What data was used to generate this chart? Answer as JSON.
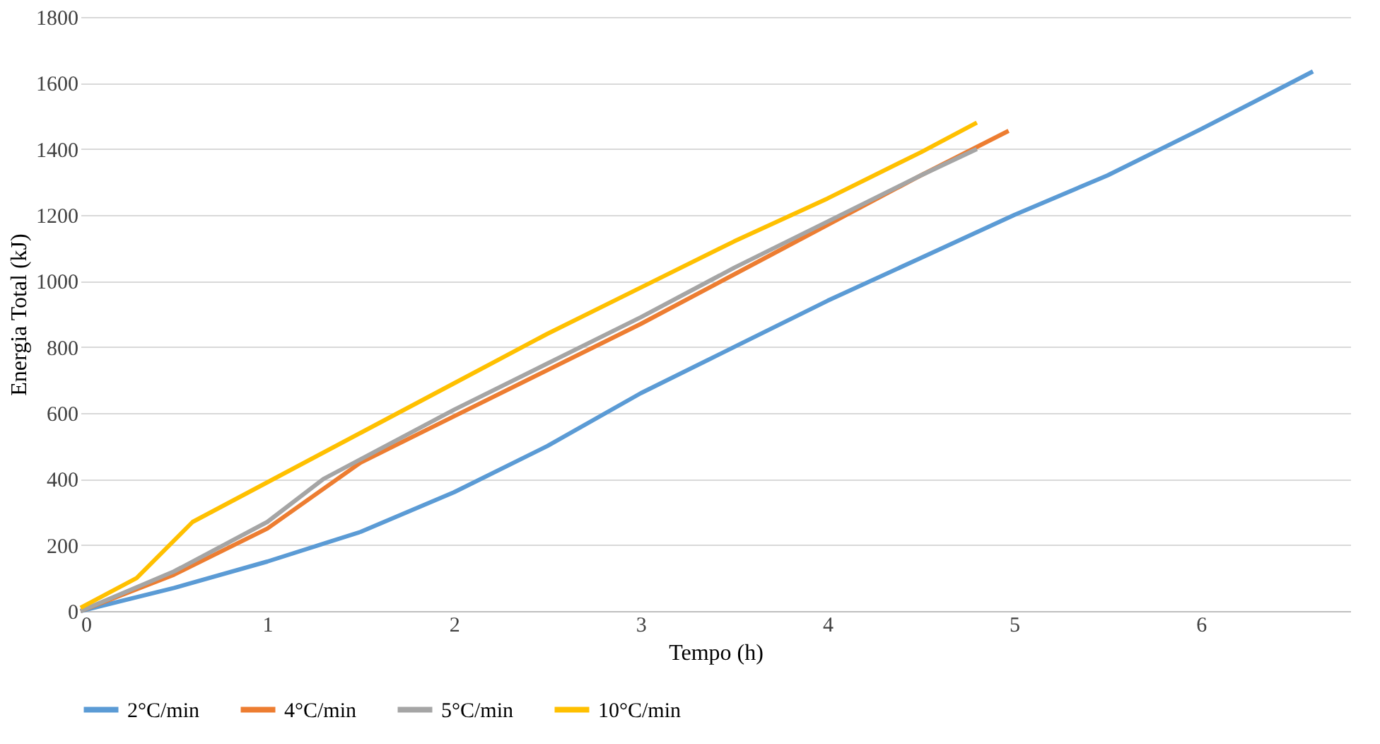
{
  "chart_data": {
    "type": "line",
    "xlabel": "Tempo (h)",
    "ylabel": "Energia Total (kJ)",
    "xlim": [
      0,
      6.8
    ],
    "xticks": [
      0,
      1,
      2,
      3,
      4,
      5,
      6
    ],
    "ylim": [
      0,
      1800
    ],
    "yticks": [
      0,
      200,
      400,
      600,
      800,
      1000,
      1200,
      1400,
      1600,
      1800
    ],
    "grid": "y",
    "legend": "bottom",
    "marker": "none",
    "line_style": "solid",
    "series": [
      {
        "name": "2°C/min",
        "color": "#5b9bd5",
        "x": [
          0,
          0.5,
          1,
          1.5,
          2,
          2.5,
          3,
          3.5,
          4,
          4.5,
          5,
          5.5,
          6,
          6.6
        ],
        "values": [
          0,
          70,
          150,
          240,
          360,
          500,
          660,
          800,
          940,
          1070,
          1200,
          1320,
          1460,
          1635
        ]
      },
      {
        "name": "4°C/min",
        "color": "#ed7d31",
        "x": [
          0,
          0.5,
          1,
          1.5,
          2,
          2.5,
          3,
          3.5,
          4,
          4.5,
          4.97
        ],
        "values": [
          0,
          110,
          250,
          450,
          590,
          730,
          870,
          1020,
          1170,
          1320,
          1455
        ]
      },
      {
        "name": "5°C/min",
        "color": "#a5a5a5",
        "x": [
          0,
          0.5,
          1,
          1.3,
          1.5,
          2,
          2.5,
          3,
          3.5,
          4,
          4.5,
          4.8
        ],
        "values": [
          0,
          120,
          270,
          400,
          460,
          610,
          750,
          890,
          1040,
          1180,
          1320,
          1400
        ]
      },
      {
        "name": "10°C/min",
        "color": "#ffc000",
        "x": [
          0,
          0.3,
          0.6,
          0.7,
          1,
          1.5,
          2,
          2.5,
          3,
          3.5,
          4,
          4.5,
          4.8
        ],
        "values": [
          10,
          100,
          270,
          300,
          390,
          540,
          690,
          840,
          980,
          1120,
          1250,
          1390,
          1480
        ]
      }
    ]
  }
}
